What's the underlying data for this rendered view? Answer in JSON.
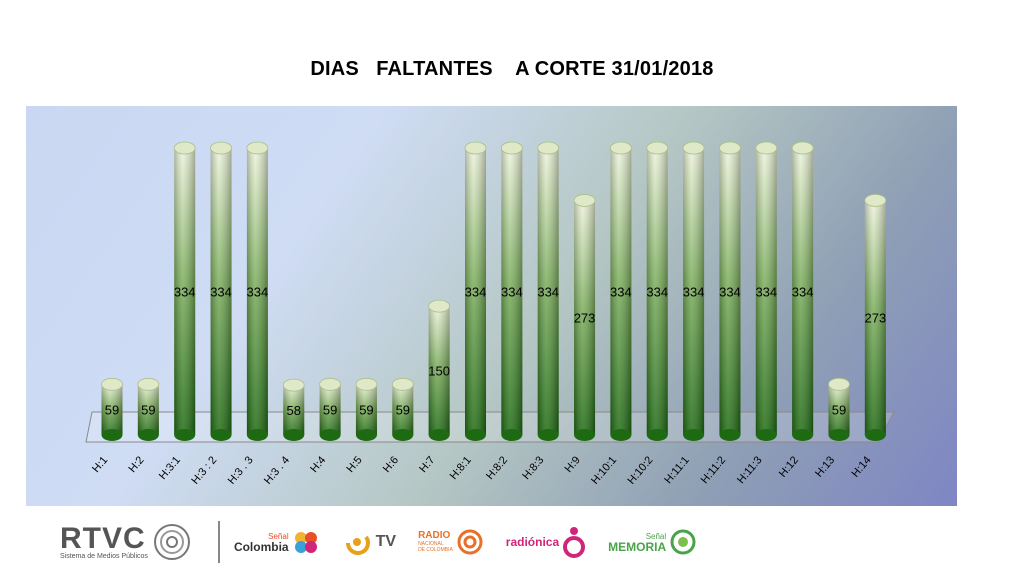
{
  "chart_data": {
    "type": "bar",
    "title": "DIAS   FALTANTES    A CORTE 31/01/2018",
    "categories": [
      "H:1",
      "H:2",
      "H:3:1",
      "H:3 : 2",
      "H:3 . 3",
      "H:3 . 4",
      "H:4",
      "H:5",
      "H:6",
      "H:7",
      "H:8:1",
      "H:8:2",
      "H:8:3",
      "H:9",
      "H:10:1",
      "H:10:2",
      "H:11:1",
      "H:11:2",
      "H:11:3",
      "H:12",
      "H:13",
      "H:14"
    ],
    "values": [
      59,
      59,
      334,
      334,
      334,
      58,
      59,
      59,
      59,
      150,
      334,
      334,
      334,
      273,
      334,
      334,
      334,
      334,
      334,
      334,
      59,
      273
    ],
    "ylim": [
      0,
      334
    ],
    "grid": false,
    "legend": "none",
    "bar_style": "3d-cylinder",
    "colors": {
      "bar_dark": "#1e6a12",
      "bar_mid": "#7fb060",
      "bar_light": "#eef4dc",
      "label": "#000000"
    }
  },
  "footer": {
    "rtvc": {
      "word": "RTVC",
      "sub": "Sistema de Medios Públicos"
    },
    "senal_colombia": {
      "top": "Señal",
      "word": "Colombia"
    },
    "canal_tv": {
      "word": "TV"
    },
    "radio_nacional": {
      "word": "RADIO",
      "sub1": "NACIONAL",
      "sub2": "DE COLOMBIA"
    },
    "radionica": {
      "word": "radiónica"
    },
    "senal_memoria": {
      "top": "Señal",
      "word": "MEMORIA"
    }
  }
}
